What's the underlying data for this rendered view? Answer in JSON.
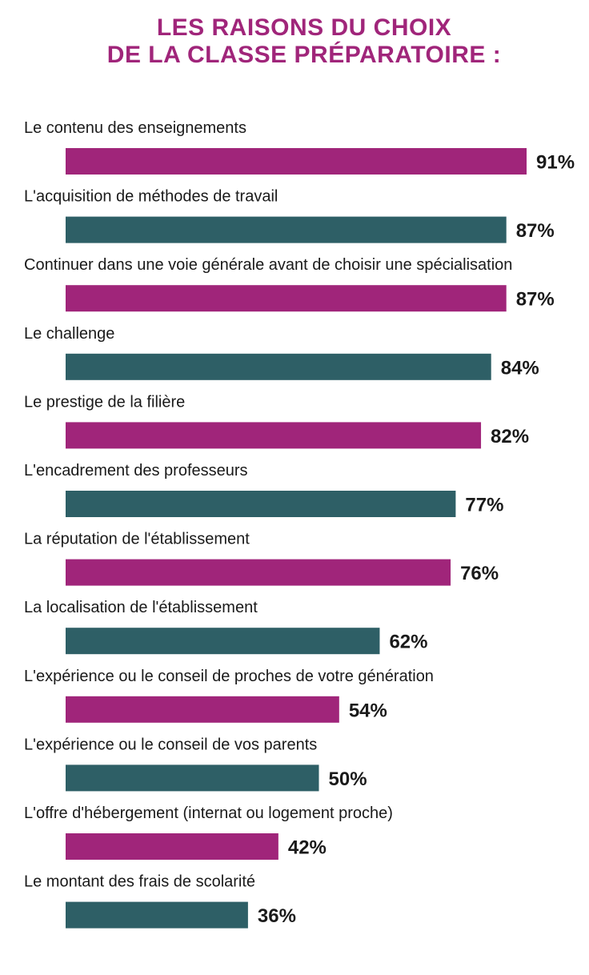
{
  "title_lines": [
    "LES RAISONS DU CHOIX",
    "DE LA CLASSE PRÉPARATOIRE :"
  ],
  "colors": {
    "title": "#a0257a",
    "bar_primary": "#a0257a",
    "bar_secondary": "#2e5f66",
    "text": "#1a1a1a"
  },
  "chart_data": {
    "type": "bar",
    "orientation": "horizontal",
    "title": "LES RAISONS DU CHOIX DE LA CLASSE PRÉPARATOIRE :",
    "categories": [
      "Le contenu des enseignements",
      "L'acquisition de méthodes de travail",
      "Continuer dans une voie générale avant de choisir une spécialisation",
      "Le challenge",
      "Le prestige de la filière",
      "L'encadrement des professeurs",
      "La réputation de l'établissement",
      "La localisation de l'établissement",
      "L'expérience ou le conseil de proches de votre génération",
      "L'expérience ou le conseil de vos parents",
      "L'offre d'hébergement (internat ou logement proche)",
      "Le montant des frais de scolarité"
    ],
    "values": [
      91,
      87,
      87,
      84,
      82,
      77,
      76,
      62,
      54,
      50,
      42,
      36
    ],
    "value_labels": [
      "91%",
      "87%",
      "87%",
      "84%",
      "82%",
      "77%",
      "76%",
      "62%",
      "54%",
      "50%",
      "42%",
      "36%"
    ],
    "unit": "%",
    "bar_colors_alternating": [
      "#a0257a",
      "#2e5f66"
    ],
    "grid": false,
    "legend": "none"
  }
}
